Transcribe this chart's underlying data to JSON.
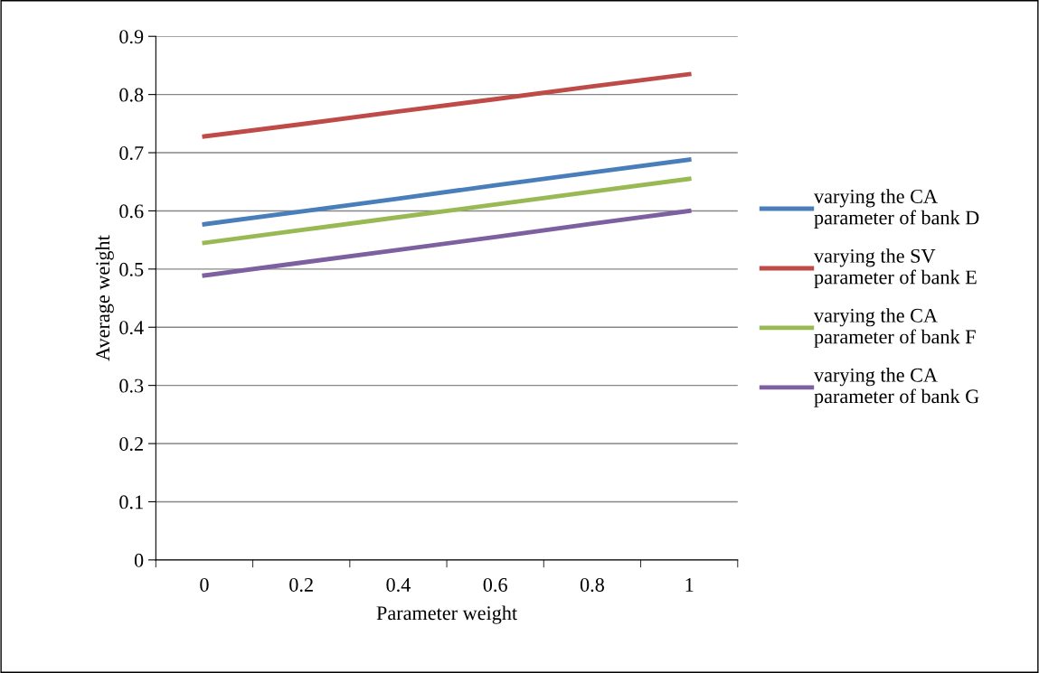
{
  "chart_data": {
    "type": "line",
    "xlabel": "Parameter weight",
    "ylabel": "Average weight",
    "categories": [
      "0",
      "0.2",
      "0.4",
      "0.6",
      "0.8",
      "1"
    ],
    "series": [
      {
        "name": "varying the CA parameter of bank D",
        "color": "#4a7ebb",
        "values": [
          0.577,
          0.599,
          0.621,
          0.644,
          0.666,
          0.688
        ]
      },
      {
        "name": "varying the SV parameter of bank E",
        "color": "#be4b48",
        "values": [
          0.728,
          0.749,
          0.771,
          0.792,
          0.814,
          0.835
        ]
      },
      {
        "name": "varying the CA parameter of bank F",
        "color": "#98b954",
        "values": [
          0.545,
          0.567,
          0.589,
          0.611,
          0.633,
          0.655
        ]
      },
      {
        "name": "varying the CA parameter of bank G",
        "color": "#7d60a0",
        "values": [
          0.489,
          0.511,
          0.533,
          0.555,
          0.578,
          0.6
        ]
      }
    ],
    "ylim": [
      0,
      0.9
    ],
    "yticks": [
      0,
      0.1,
      0.2,
      0.3,
      0.4,
      0.5,
      0.6,
      0.7,
      0.8,
      0.9
    ],
    "grid": "y",
    "legend": "right",
    "marker": "none",
    "line_style": "solid"
  }
}
